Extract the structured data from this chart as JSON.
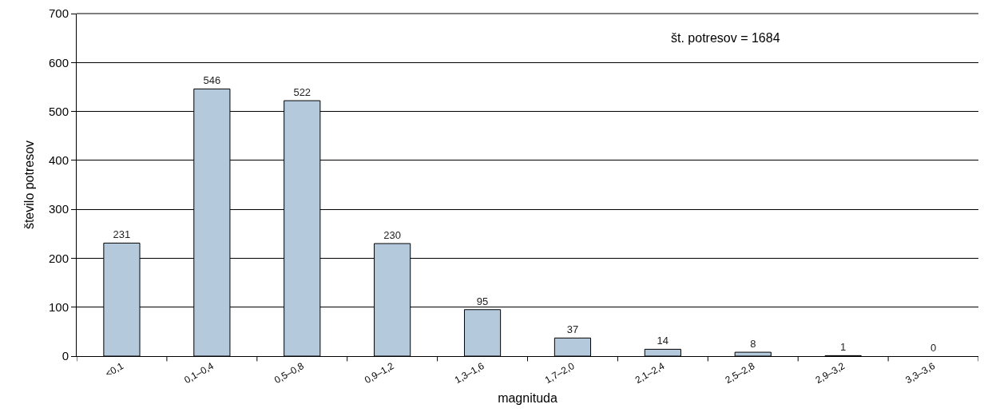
{
  "chart_data": {
    "type": "bar",
    "xlabel": "magnituda",
    "ylabel": "število potresov",
    "categories": [
      "<0,1",
      "0,1–0,4",
      "0,5–0,8",
      "0,9–1,2",
      "1,3–1,6",
      "1,7–2,0",
      "2,1–2,4",
      "2,5–2,8",
      "2,9–3,2",
      "3,3–3,6"
    ],
    "values": [
      231,
      546,
      522,
      230,
      95,
      37,
      14,
      8,
      1,
      0
    ],
    "color": "#b4c9dc",
    "data_labels": true,
    "ylim": [
      0,
      700
    ],
    "yticks": [
      0,
      100,
      200,
      300,
      400,
      500,
      600,
      700
    ],
    "grid": "y",
    "annotations": [
      "št. potresov = 1684"
    ]
  }
}
